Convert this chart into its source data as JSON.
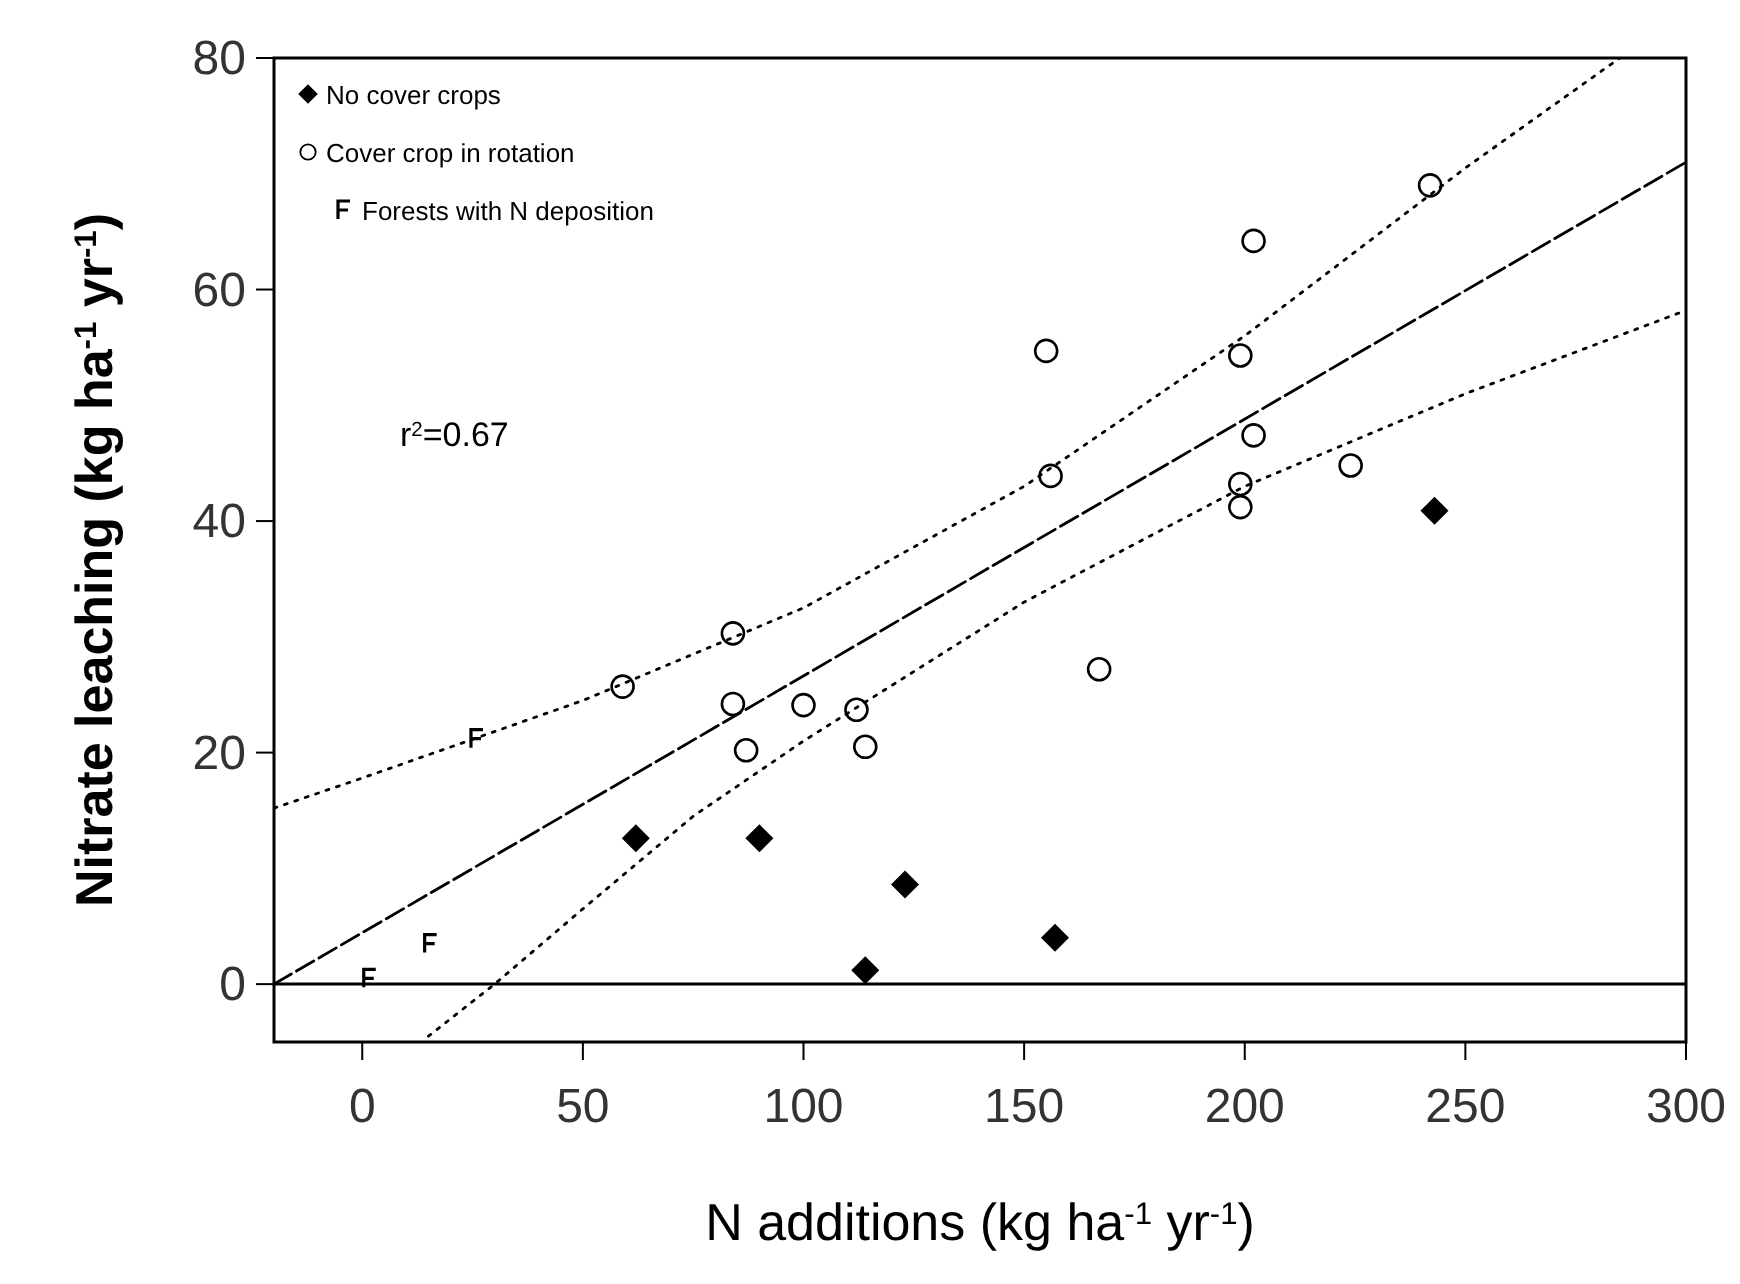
{
  "chart_data": {
    "type": "scatter",
    "xlabel": "N additions (kg ha$^{-1}$ yr$^{-1}$)",
    "ylabel": "Nitrate leaching (kg ha$^{-1}$ yr$^{-1}$)",
    "xlim": [
      -20,
      300
    ],
    "xticks": [
      0,
      50,
      100,
      150,
      200,
      250,
      300
    ],
    "ylim": [
      -5,
      80
    ],
    "yticks": [
      0,
      20,
      40,
      60,
      80
    ],
    "legend": "top left",
    "grid": false,
    "annotations": [
      "r$^{2}$=0.67"
    ],
    "ref_lines": [
      {
        "axis": "y",
        "value": 0,
        "color": "#000000",
        "line_style": "solid"
      }
    ],
    "series": [
      {
        "name": "No cover crops",
        "marker": "diamond",
        "color": "#000000",
        "x": [
          62,
          90,
          123,
          157,
          114,
          243
        ],
        "values": [
          12.6,
          12.6,
          8.6,
          4.0,
          1.2,
          40.9
        ]
      },
      {
        "name": "Cover crop in rotation",
        "marker": "circle",
        "color": "#000000",
        "x": [
          59,
          84,
          84,
          100,
          112,
          87,
          114,
          167,
          242,
          202,
          155,
          199,
          156,
          202,
          199,
          199,
          224
        ],
        "values": [
          25.7,
          30.3,
          24.2,
          24.1,
          23.7,
          20.2,
          20.5,
          27.2,
          69.0,
          64.2,
          54.7,
          54.3,
          43.9,
          47.4,
          43.2,
          41.2,
          44.8
        ]
      },
      {
        "name": "Forests with N deposition",
        "color": "#000000",
        "x": [
          26,
          15.5,
          1.7
        ],
        "values": [
          21.2,
          3.5,
          0.5
        ]
      },
      {
        "type": "line",
        "color": "#000000",
        "line_style": "dashed",
        "x": [
          -20,
          300
        ],
        "values": [
          0,
          71
        ]
      },
      {
        "type": "line",
        "color": "#000000",
        "line_style": "dotted",
        "x": [
          -20,
          0,
          50,
          100,
          150,
          200,
          250,
          285
        ],
        "values": [
          15.2,
          17.8,
          24.5,
          32.5,
          43,
          56,
          70.5,
          80
        ]
      },
      {
        "type": "line",
        "color": "#000000",
        "line_style": "dotted",
        "x": [
          15,
          30,
          50,
          75,
          100,
          150,
          200,
          250,
          300
        ],
        "values": [
          -4.5,
          0,
          6.5,
          14.5,
          21,
          33,
          43,
          51,
          58.2
        ]
      }
    ]
  }
}
